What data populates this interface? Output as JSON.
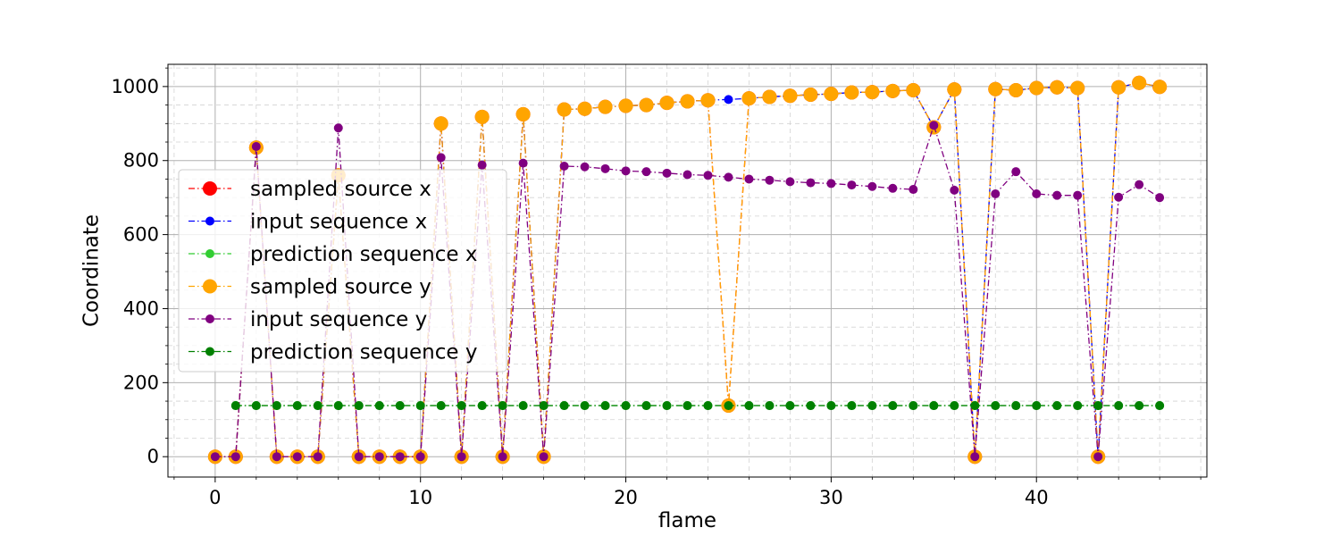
{
  "chart_data": {
    "type": "line",
    "xlabel": "flame",
    "ylabel": "Coordinate",
    "xlim": [
      -2.3,
      48.3
    ],
    "ylim": [
      -55,
      1060
    ],
    "x_ticks": [
      0,
      10,
      20,
      30,
      40
    ],
    "y_ticks": [
      0,
      200,
      400,
      600,
      800,
      1000
    ],
    "grid": "major solid, minor dashed",
    "legend_position": "center-left",
    "series": [
      {
        "name": "sampled source x",
        "color": "#ff0000",
        "marker": "large",
        "x": [
          0,
          1,
          2,
          3,
          4,
          5,
          6,
          7,
          8,
          9,
          10,
          11,
          12,
          13,
          14,
          15,
          16,
          17,
          18,
          19,
          20,
          21,
          22,
          23,
          24,
          25,
          26,
          27,
          28,
          29,
          30,
          31,
          32,
          33,
          34,
          35,
          36,
          37,
          38,
          39,
          40,
          41,
          42,
          43,
          44,
          45,
          46
        ],
        "values": [
          0,
          0,
          835,
          0,
          0,
          0,
          760,
          0,
          0,
          0,
          0,
          900,
          0,
          918,
          0,
          925,
          0,
          938,
          940,
          945,
          948,
          950,
          956,
          960,
          963,
          138,
          968,
          972,
          975,
          978,
          980,
          984,
          985,
          988,
          990,
          890,
          992,
          0,
          993,
          990,
          996,
          998,
          996,
          0,
          998,
          1010,
          999
        ]
      },
      {
        "name": "input sequence x",
        "color": "#0000ff",
        "marker": "small",
        "x": [
          0,
          1,
          2,
          3,
          4,
          5,
          6,
          7,
          8,
          9,
          10,
          11,
          12,
          13,
          14,
          15,
          16,
          17,
          18,
          19,
          20,
          21,
          22,
          23,
          24,
          25,
          26,
          27,
          28,
          29,
          30,
          31,
          32,
          33,
          34,
          35,
          36,
          37,
          38,
          39,
          40,
          41,
          42,
          43,
          44,
          45,
          46
        ],
        "values": [
          0,
          0,
          835,
          0,
          0,
          0,
          760,
          0,
          0,
          0,
          0,
          900,
          0,
          918,
          0,
          925,
          0,
          938,
          940,
          945,
          948,
          950,
          956,
          960,
          963,
          965,
          968,
          972,
          975,
          978,
          980,
          984,
          985,
          988,
          990,
          890,
          992,
          0,
          993,
          990,
          996,
          998,
          996,
          0,
          998,
          1010,
          999
        ]
      },
      {
        "name": "prediction sequence x",
        "color": "#32cd32",
        "marker": "small",
        "x": [
          1,
          2,
          3,
          4,
          5,
          6,
          7,
          8,
          9,
          10,
          11,
          12,
          13,
          14,
          15,
          16,
          17,
          18,
          19,
          20,
          21,
          22,
          23,
          24,
          25,
          26,
          27,
          28,
          29,
          30,
          31,
          32,
          33,
          34,
          35,
          36,
          37,
          38,
          39,
          40,
          41,
          42,
          43,
          44,
          45,
          46
        ],
        "values": [
          138,
          138,
          138,
          138,
          138,
          138,
          138,
          138,
          138,
          138,
          138,
          138,
          138,
          138,
          138,
          138,
          138,
          138,
          138,
          138,
          138,
          138,
          138,
          138,
          138,
          138,
          138,
          138,
          138,
          138,
          138,
          138,
          138,
          138,
          138,
          138,
          138,
          138,
          138,
          138,
          138,
          138,
          138,
          138,
          138,
          138
        ]
      },
      {
        "name": "sampled source y",
        "color": "#ffa500",
        "marker": "large",
        "x": [
          0,
          1,
          2,
          3,
          4,
          5,
          6,
          7,
          8,
          9,
          10,
          11,
          12,
          13,
          14,
          15,
          16,
          17,
          18,
          19,
          20,
          21,
          22,
          23,
          24,
          25,
          26,
          27,
          28,
          29,
          30,
          31,
          32,
          33,
          34,
          35,
          36,
          37,
          38,
          39,
          40,
          41,
          42,
          43,
          44,
          45,
          46
        ],
        "values": [
          0,
          0,
          835,
          0,
          0,
          0,
          760,
          0,
          0,
          0,
          0,
          900,
          0,
          918,
          0,
          925,
          0,
          938,
          940,
          945,
          948,
          950,
          956,
          960,
          963,
          138,
          968,
          972,
          975,
          978,
          980,
          984,
          985,
          988,
          990,
          890,
          992,
          0,
          993,
          990,
          996,
          998,
          996,
          0,
          998,
          1010,
          999
        ]
      },
      {
        "name": "input sequence y",
        "color": "#800080",
        "marker": "small",
        "x": [
          0,
          1,
          2,
          3,
          4,
          5,
          6,
          7,
          8,
          9,
          10,
          11,
          12,
          13,
          14,
          15,
          16,
          17,
          18,
          19,
          20,
          21,
          22,
          23,
          24,
          25,
          26,
          27,
          28,
          29,
          30,
          31,
          32,
          33,
          34,
          35,
          36,
          37,
          38,
          39,
          40,
          41,
          42,
          43,
          44,
          45,
          46
        ],
        "values": [
          0,
          0,
          838,
          0,
          0,
          0,
          888,
          0,
          0,
          0,
          0,
          808,
          0,
          788,
          0,
          793,
          0,
          785,
          783,
          778,
          772,
          770,
          766,
          762,
          760,
          755,
          750,
          747,
          743,
          740,
          738,
          734,
          730,
          725,
          722,
          895,
          720,
          0,
          710,
          770,
          710,
          706,
          706,
          0,
          701,
          735,
          700
        ]
      },
      {
        "name": "prediction sequence y",
        "color": "#008000",
        "marker": "small",
        "x": [
          1,
          2,
          3,
          4,
          5,
          6,
          7,
          8,
          9,
          10,
          11,
          12,
          13,
          14,
          15,
          16,
          17,
          18,
          19,
          20,
          21,
          22,
          23,
          24,
          25,
          26,
          27,
          28,
          29,
          30,
          31,
          32,
          33,
          34,
          35,
          36,
          37,
          38,
          39,
          40,
          41,
          42,
          43,
          44,
          45,
          46
        ],
        "values": [
          138,
          138,
          138,
          138,
          138,
          138,
          138,
          138,
          138,
          138,
          138,
          138,
          138,
          138,
          138,
          138,
          138,
          138,
          138,
          138,
          138,
          138,
          138,
          138,
          138,
          138,
          138,
          138,
          138,
          138,
          138,
          138,
          138,
          138,
          138,
          138,
          138,
          138,
          138,
          138,
          138,
          138,
          138,
          138,
          138,
          138
        ]
      }
    ]
  }
}
